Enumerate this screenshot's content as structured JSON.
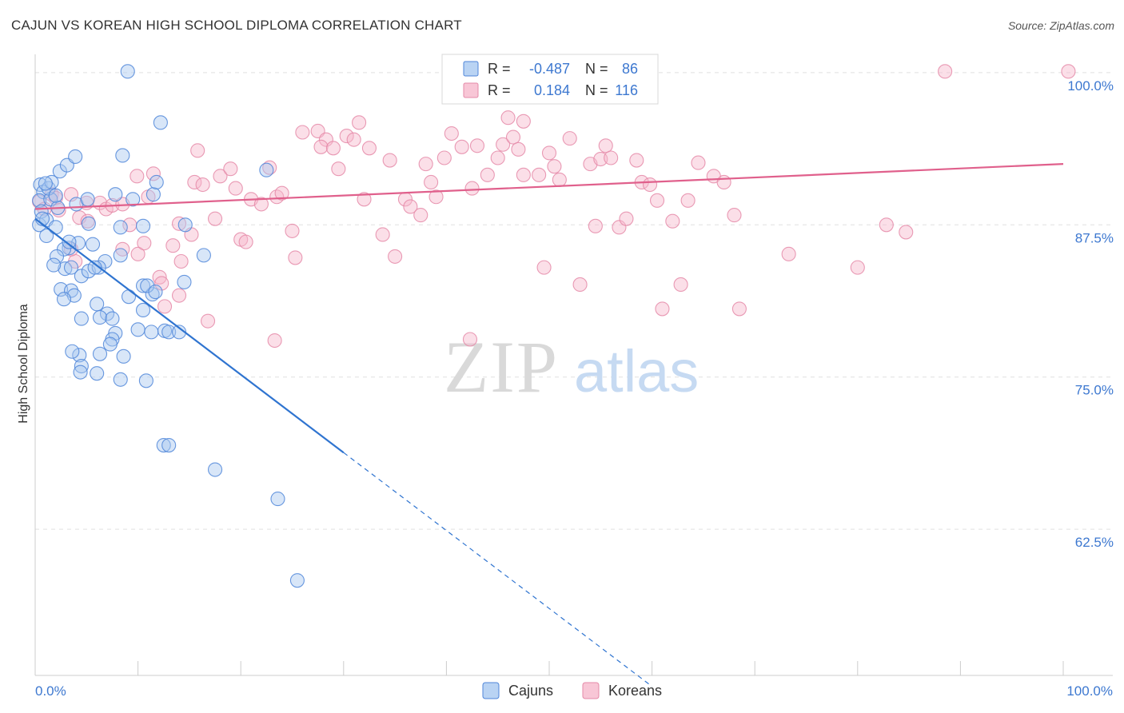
{
  "title": "CAJUN VS KOREAN HIGH SCHOOL DIPLOMA CORRELATION CHART",
  "source": "Source: ZipAtlas.com",
  "watermark": {
    "zip": "ZIP",
    "atlas": "atlas"
  },
  "legend_stats": [
    {
      "series": "Cajuns",
      "r_label": "R =",
      "r_value": "-0.487",
      "n_label": "N =",
      "n_value": "86"
    },
    {
      "series": "Koreans",
      "r_label": "R =",
      "r_value": "0.184",
      "n_label": "N =",
      "n_value": "116"
    }
  ],
  "colors": {
    "cajuns_fill": "#a8c8f0",
    "cajuns_stroke": "#4f86d9",
    "cajuns_line": "#2f74d0",
    "koreans_fill": "#f6b8cc",
    "koreans_stroke": "#e58aa8",
    "koreans_line": "#e0608c",
    "tick_label": "#3d78d0",
    "grid": "#e0e0e0"
  },
  "chart_data": {
    "type": "scatter",
    "title": "CAJUN VS KOREAN HIGH SCHOOL DIPLOMA CORRELATION CHART",
    "xlabel": "",
    "ylabel": "High School Diploma",
    "xlim": [
      0,
      100
    ],
    "ylim": [
      50.5,
      101.5
    ],
    "x_tick_labels": [
      "0.0%",
      "100.0%"
    ],
    "y_ticks": [
      62.5,
      75.0,
      87.5,
      100.0
    ],
    "y_tick_labels": [
      "62.5%",
      "75.0%",
      "87.5%",
      "100.0%"
    ],
    "grid": "horizontal dashed",
    "legend_position": "top-center and bottom",
    "series": [
      {
        "name": "Cajuns",
        "trend": {
          "x0": 0,
          "y0": 88.0,
          "x1": 30,
          "y1": 68.8,
          "dashed_to_x": 60,
          "dashed_to_y": 49.6
        },
        "points": [
          [
            0.5,
            90.8
          ],
          [
            0.8,
            90.2
          ],
          [
            0.4,
            89.5
          ],
          [
            0.6,
            88.6
          ],
          [
            0.4,
            87.5
          ],
          [
            1.1,
            87.9
          ],
          [
            1.5,
            89.6
          ],
          [
            1.3,
            90.5
          ],
          [
            1.6,
            91.0
          ],
          [
            1.1,
            86.6
          ],
          [
            2.0,
            87.3
          ],
          [
            2.2,
            88.9
          ],
          [
            2.4,
            91.9
          ],
          [
            3.1,
            92.4
          ],
          [
            3.9,
            93.1
          ],
          [
            4.0,
            89.2
          ],
          [
            5.1,
            89.6
          ],
          [
            5.2,
            87.6
          ],
          [
            4.2,
            86.0
          ],
          [
            3.3,
            85.6
          ],
          [
            2.8,
            85.5
          ],
          [
            2.1,
            84.9
          ],
          [
            2.9,
            83.9
          ],
          [
            1.8,
            84.2
          ],
          [
            2.5,
            82.2
          ],
          [
            3.5,
            82.1
          ],
          [
            3.8,
            81.7
          ],
          [
            2.8,
            81.4
          ],
          [
            4.5,
            83.3
          ],
          [
            5.2,
            83.7
          ],
          [
            5.6,
            85.9
          ],
          [
            6.8,
            84.5
          ],
          [
            8.3,
            85.0
          ],
          [
            8.3,
            87.3
          ],
          [
            9.5,
            89.6
          ],
          [
            7.8,
            90.0
          ],
          [
            8.5,
            93.2
          ],
          [
            10.5,
            87.4
          ],
          [
            11.5,
            90.0
          ],
          [
            11.8,
            91.0
          ],
          [
            12.2,
            95.9
          ],
          [
            14.6,
            87.5
          ],
          [
            16.4,
            85.0
          ],
          [
            14.5,
            82.8
          ],
          [
            11.4,
            81.8
          ],
          [
            10.5,
            82.5
          ],
          [
            9.1,
            81.6
          ],
          [
            7.0,
            80.2
          ],
          [
            6.0,
            81.0
          ],
          [
            4.5,
            79.8
          ],
          [
            6.3,
            79.9
          ],
          [
            7.5,
            79.8
          ],
          [
            7.8,
            78.6
          ],
          [
            7.5,
            78.1
          ],
          [
            7.3,
            77.7
          ],
          [
            6.3,
            76.9
          ],
          [
            4.3,
            76.8
          ],
          [
            3.6,
            77.1
          ],
          [
            4.5,
            75.9
          ],
          [
            4.4,
            75.4
          ],
          [
            6.0,
            75.3
          ],
          [
            8.3,
            74.8
          ],
          [
            8.6,
            76.7
          ],
          [
            10.0,
            78.9
          ],
          [
            11.3,
            78.7
          ],
          [
            12.6,
            78.8
          ],
          [
            13.0,
            78.7
          ],
          [
            14.0,
            78.7
          ],
          [
            10.5,
            80.5
          ],
          [
            10.9,
            82.5
          ],
          [
            10.8,
            74.7
          ],
          [
            12.5,
            69.4
          ],
          [
            13.0,
            69.4
          ],
          [
            17.5,
            67.4
          ],
          [
            23.6,
            65.0
          ],
          [
            25.5,
            58.3
          ],
          [
            11.7,
            82.0
          ],
          [
            9.0,
            100.1
          ],
          [
            22.5,
            92.0
          ],
          [
            2.0,
            89.9
          ],
          [
            1.0,
            90.9
          ],
          [
            0.7,
            88.0
          ],
          [
            3.5,
            84.0
          ],
          [
            6.2,
            84.0
          ],
          [
            5.8,
            84.0
          ],
          [
            3.3,
            86.1
          ]
        ]
      },
      {
        "name": "Koreans",
        "trend": {
          "x0": 0,
          "y0": 88.8,
          "x1": 100,
          "y1": 92.5
        },
        "points": [
          [
            0.4,
            89.4
          ],
          [
            0.9,
            88.8
          ],
          [
            1.6,
            90.0
          ],
          [
            2.0,
            89.7
          ],
          [
            2.3,
            88.7
          ],
          [
            3.5,
            90.0
          ],
          [
            4.3,
            88.1
          ],
          [
            5.0,
            89.3
          ],
          [
            6.3,
            89.3
          ],
          [
            6.9,
            88.8
          ],
          [
            7.5,
            89.1
          ],
          [
            8.5,
            89.2
          ],
          [
            9.2,
            87.5
          ],
          [
            10.0,
            85.1
          ],
          [
            10.6,
            86.0
          ],
          [
            9.9,
            91.5
          ],
          [
            11.0,
            89.8
          ],
          [
            11.5,
            91.7
          ],
          [
            13.4,
            85.8
          ],
          [
            14.2,
            84.5
          ],
          [
            14.0,
            87.6
          ],
          [
            15.2,
            86.7
          ],
          [
            15.8,
            93.6
          ],
          [
            15.5,
            91.0
          ],
          [
            16.3,
            90.8
          ],
          [
            17.5,
            88.0
          ],
          [
            18.0,
            91.5
          ],
          [
            19.0,
            92.1
          ],
          [
            19.5,
            90.5
          ],
          [
            20.0,
            86.3
          ],
          [
            20.5,
            86.1
          ],
          [
            21.0,
            89.6
          ],
          [
            22.0,
            89.2
          ],
          [
            22.8,
            92.2
          ],
          [
            23.5,
            89.8
          ],
          [
            24.0,
            90.1
          ],
          [
            25.0,
            87.0
          ],
          [
            25.3,
            84.8
          ],
          [
            26.0,
            95.1
          ],
          [
            27.5,
            95.2
          ],
          [
            28.3,
            94.5
          ],
          [
            27.8,
            93.9
          ],
          [
            29.0,
            93.8
          ],
          [
            29.5,
            92.1
          ],
          [
            30.3,
            94.8
          ],
          [
            31.0,
            94.5
          ],
          [
            31.5,
            95.9
          ],
          [
            32.0,
            89.6
          ],
          [
            32.5,
            93.8
          ],
          [
            33.8,
            86.7
          ],
          [
            34.5,
            92.8
          ],
          [
            35.0,
            84.9
          ],
          [
            36.0,
            89.6
          ],
          [
            36.5,
            89.0
          ],
          [
            37.5,
            88.3
          ],
          [
            38.0,
            92.5
          ],
          [
            38.5,
            91.0
          ],
          [
            39.0,
            89.8
          ],
          [
            39.8,
            93.0
          ],
          [
            40.5,
            95.0
          ],
          [
            41.5,
            93.9
          ],
          [
            42.5,
            90.5
          ],
          [
            43.0,
            94.0
          ],
          [
            44.0,
            91.6
          ],
          [
            45.0,
            93.0
          ],
          [
            45.5,
            94.1
          ],
          [
            46.5,
            94.7
          ],
          [
            47.0,
            93.7
          ],
          [
            47.5,
            91.6
          ],
          [
            49.0,
            91.6
          ],
          [
            49.5,
            84.0
          ],
          [
            50.0,
            93.4
          ],
          [
            50.5,
            92.3
          ],
          [
            51.0,
            91.2
          ],
          [
            52.0,
            94.6
          ],
          [
            53.0,
            82.6
          ],
          [
            54.0,
            92.5
          ],
          [
            54.5,
            87.4
          ],
          [
            55.0,
            92.9
          ],
          [
            55.5,
            94.0
          ],
          [
            56.0,
            93.0
          ],
          [
            56.8,
            87.3
          ],
          [
            57.5,
            88.0
          ],
          [
            58.5,
            92.8
          ],
          [
            59.0,
            91.0
          ],
          [
            59.8,
            90.8
          ],
          [
            60.5,
            89.5
          ],
          [
            61.0,
            80.6
          ],
          [
            62.0,
            87.8
          ],
          [
            62.8,
            82.6
          ],
          [
            63.5,
            89.5
          ],
          [
            64.5,
            92.6
          ],
          [
            66.0,
            91.5
          ],
          [
            67.0,
            91.0
          ],
          [
            68.0,
            88.3
          ],
          [
            68.5,
            80.6
          ],
          [
            73.3,
            85.1
          ],
          [
            80.0,
            84.0
          ],
          [
            82.8,
            87.5
          ],
          [
            84.7,
            86.9
          ],
          [
            42.3,
            78.1
          ],
          [
            41.0,
            98.8
          ],
          [
            44.5,
            98.0
          ],
          [
            47.5,
            96.0
          ],
          [
            46.0,
            96.3
          ],
          [
            49.3,
            99.8
          ],
          [
            88.5,
            100.1
          ],
          [
            100.5,
            100.1
          ],
          [
            12.1,
            83.2
          ],
          [
            12.3,
            82.7
          ],
          [
            12.6,
            80.8
          ],
          [
            14.0,
            81.7
          ],
          [
            16.8,
            79.6
          ],
          [
            23.3,
            78.0
          ],
          [
            3.9,
            84.5
          ],
          [
            3.5,
            85.5
          ],
          [
            5.1,
            87.8
          ],
          [
            8.5,
            85.5
          ]
        ]
      }
    ]
  }
}
